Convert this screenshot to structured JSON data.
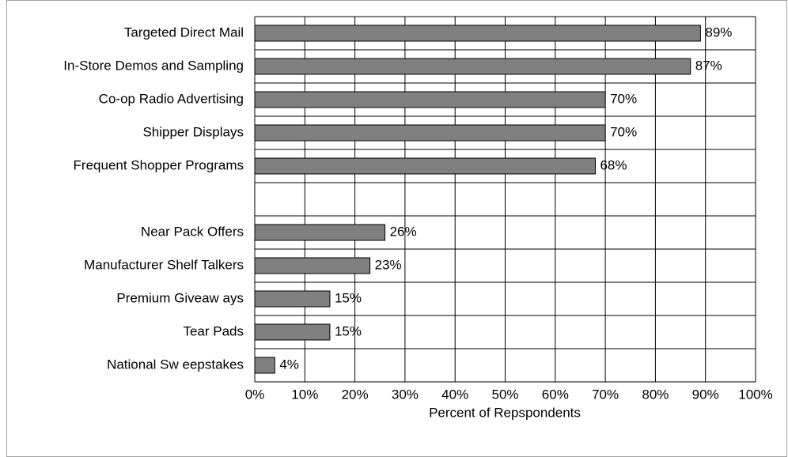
{
  "chart_data": {
    "type": "hbar",
    "categories": [
      "Targeted Direct Mail",
      "In-Store Demos and Sampling",
      "Co-op Radio Advertising",
      "Shipper Displays",
      "Frequent Shopper Programs",
      null,
      "Near Pack Offers",
      "Manufacturer Shelf Talkers",
      "Premium Giveaw ays",
      "Tear Pads",
      "National Sw eepstakes"
    ],
    "values": [
      89,
      87,
      70,
      70,
      68,
      null,
      26,
      23,
      15,
      15,
      4
    ],
    "value_labels": [
      "89%",
      "87%",
      "70%",
      "70%",
      "68%",
      null,
      "26%",
      "23%",
      "15%",
      "15%",
      "4%"
    ],
    "color": "#808080",
    "xlim": [
      0,
      100
    ],
    "xticks": [
      {
        "value": 0,
        "label": "0%"
      },
      {
        "value": 10,
        "label": "10%"
      },
      {
        "value": 20,
        "label": "20%"
      },
      {
        "value": 30,
        "label": "30%"
      },
      {
        "value": 40,
        "label": "40%"
      },
      {
        "value": 50,
        "label": "50%"
      },
      {
        "value": 60,
        "label": "60%"
      },
      {
        "value": 70,
        "label": "70%"
      },
      {
        "value": 80,
        "label": "80%"
      },
      {
        "value": 90,
        "label": "90%"
      },
      {
        "value": 100,
        "label": "100%"
      }
    ],
    "xlabel": "Percent of Repspondents",
    "grid": true
  }
}
